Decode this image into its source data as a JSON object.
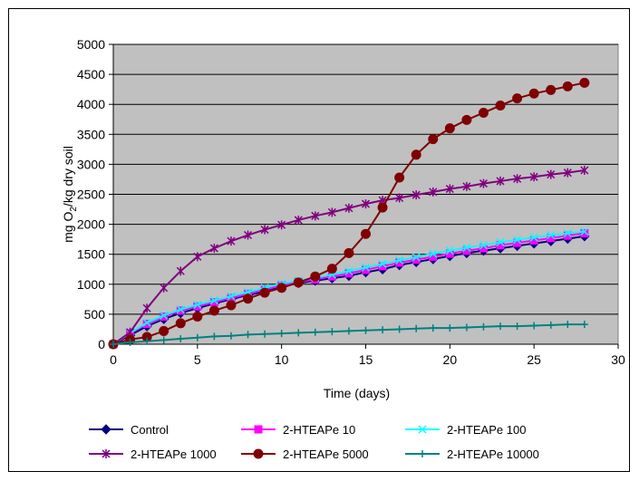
{
  "chart_data": {
    "type": "line",
    "title": "",
    "xlabel": "Time (days)",
    "ylabel_main": "mg O",
    "ylabel_sub": "2",
    "ylabel_rest": "/kg dry soil",
    "xlim": [
      0,
      30
    ],
    "ylim": [
      0,
      5000
    ],
    "xticks": [
      0,
      5,
      10,
      15,
      20,
      25,
      30
    ],
    "yticks": [
      0,
      500,
      1000,
      1500,
      2000,
      2500,
      3000,
      3500,
      4000,
      4500,
      5000
    ],
    "grid": "horizontal",
    "plot_background": "#c0c0c0",
    "legend_position": "bottom",
    "x": [
      0,
      1,
      2,
      3,
      4,
      5,
      6,
      7,
      8,
      9,
      10,
      11,
      12,
      13,
      14,
      15,
      16,
      17,
      18,
      19,
      20,
      21,
      22,
      23,
      24,
      25,
      26,
      27,
      28
    ],
    "series": [
      {
        "name": "Control",
        "color": "#000080",
        "marker": "diamond",
        "values": [
          0,
          150,
          300,
          420,
          520,
          600,
          680,
          750,
          820,
          880,
          960,
          1020,
          1060,
          1100,
          1140,
          1200,
          1250,
          1320,
          1370,
          1420,
          1470,
          1520,
          1560,
          1600,
          1640,
          1680,
          1720,
          1760,
          1800
        ]
      },
      {
        "name": "2-HTEAPe 10",
        "color": "#ff00ff",
        "marker": "square",
        "values": [
          0,
          180,
          340,
          460,
          560,
          630,
          700,
          770,
          840,
          910,
          980,
          1040,
          1080,
          1130,
          1180,
          1240,
          1300,
          1360,
          1410,
          1460,
          1510,
          1560,
          1600,
          1650,
          1690,
          1730,
          1770,
          1810,
          1850
        ]
      },
      {
        "name": "2-HTEAPe 100",
        "color": "#00ffff",
        "marker": "x",
        "values": [
          0,
          190,
          360,
          480,
          580,
          660,
          730,
          800,
          870,
          940,
          1010,
          1060,
          1110,
          1160,
          1220,
          1280,
          1340,
          1400,
          1450,
          1510,
          1560,
          1610,
          1650,
          1700,
          1740,
          1780,
          1820,
          1850,
          1880
        ]
      },
      {
        "name": "2-HTEAPe 1000",
        "color": "#800080",
        "marker": "star",
        "values": [
          0,
          200,
          600,
          940,
          1220,
          1460,
          1600,
          1720,
          1820,
          1910,
          1990,
          2070,
          2140,
          2200,
          2270,
          2340,
          2400,
          2440,
          2490,
          2540,
          2590,
          2630,
          2680,
          2720,
          2760,
          2790,
          2830,
          2860,
          2900
        ]
      },
      {
        "name": "2-HTEAPe 5000",
        "color": "#800000",
        "marker": "circle",
        "values": [
          0,
          80,
          120,
          220,
          350,
          460,
          560,
          650,
          760,
          860,
          940,
          1030,
          1130,
          1260,
          1520,
          1840,
          2280,
          2780,
          3160,
          3420,
          3600,
          3740,
          3860,
          3980,
          4100,
          4180,
          4240,
          4300,
          4360
        ]
      },
      {
        "name": "2-HTEAPe 10000",
        "color": "#008080",
        "marker": "plus",
        "values": [
          0,
          30,
          50,
          70,
          90,
          110,
          130,
          140,
          160,
          170,
          180,
          190,
          200,
          210,
          220,
          230,
          240,
          250,
          260,
          270,
          270,
          280,
          290,
          300,
          300,
          310,
          320,
          330,
          330
        ]
      }
    ]
  }
}
